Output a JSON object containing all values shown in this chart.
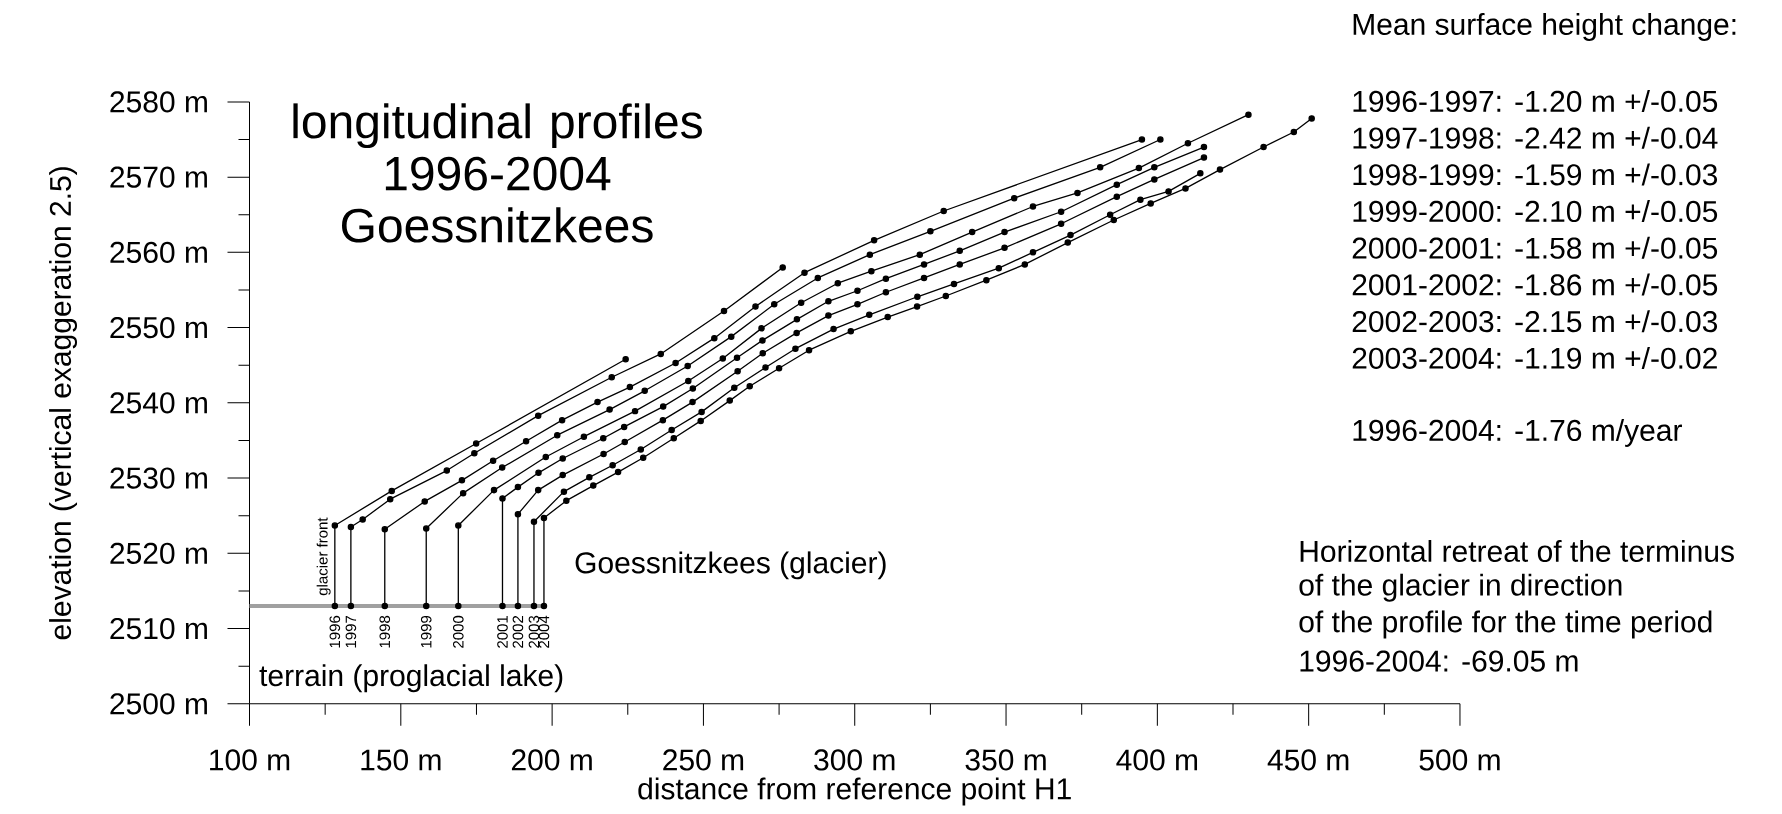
{
  "chart_data": {
    "type": "line",
    "title": "longitudinal profiles 1996-2004 Goessnitzkees",
    "xlabel": "distance from reference point H1",
    "ylabel": "elevation (vertical exaggeration 2.5)",
    "xlim": [
      100,
      500
    ],
    "ylim": [
      2500,
      2580
    ],
    "marker": "circle",
    "xticks": [
      {
        "value": 100,
        "label": "100 m"
      },
      {
        "value": 125,
        "label": null
      },
      {
        "value": 150,
        "label": "150 m"
      },
      {
        "value": 175,
        "label": null
      },
      {
        "value": 200,
        "label": "200 m"
      },
      {
        "value": 225,
        "label": null
      },
      {
        "value": 250,
        "label": "250 m"
      },
      {
        "value": 275,
        "label": null
      },
      {
        "value": 300,
        "label": "300 m"
      },
      {
        "value": 325,
        "label": null
      },
      {
        "value": 350,
        "label": "350 m"
      },
      {
        "value": 375,
        "label": null
      },
      {
        "value": 400,
        "label": "400 m"
      },
      {
        "value": 425,
        "label": null
      },
      {
        "value": 450,
        "label": "450 m"
      },
      {
        "value": 475,
        "label": null
      },
      {
        "value": 500,
        "label": "500 m"
      }
    ],
    "yticks": [
      {
        "value": 2500,
        "label": "2500 m"
      },
      {
        "value": 2505,
        "label": null
      },
      {
        "value": 2510,
        "label": "2510 m"
      },
      {
        "value": 2515,
        "label": null
      },
      {
        "value": 2520,
        "label": "2520 m"
      },
      {
        "value": 2525,
        "label": null
      },
      {
        "value": 2530,
        "label": "2530 m"
      },
      {
        "value": 2535,
        "label": null
      },
      {
        "value": 2540,
        "label": "2540 m"
      },
      {
        "value": 2545,
        "label": null
      },
      {
        "value": 2550,
        "label": "2550 m"
      },
      {
        "value": 2555,
        "label": null
      },
      {
        "value": 2560,
        "label": "2560 m"
      },
      {
        "value": 2565,
        "label": null
      },
      {
        "value": 2570,
        "label": "2570 m"
      },
      {
        "value": 2575,
        "label": null
      },
      {
        "value": 2580,
        "label": "2580 m"
      }
    ],
    "series": [
      {
        "color": "#a0a0a0",
        "marker": "none",
        "x": [
          100,
          197.3
        ],
        "values": [
          2513,
          2513
        ]
      },
      {
        "name": "1996",
        "color": "#000000",
        "x": [
          128.2,
          128.2,
          147.0,
          174.9,
          224.3
        ],
        "values": [
          2513,
          2523.7,
          2528.3,
          2534.6,
          2545.8
        ]
      },
      {
        "name": "1997",
        "color": "#000000",
        "x": [
          133.5,
          133.5,
          137.4,
          146.5,
          165.2,
          174.3,
          195.4,
          219.7,
          235.9,
          256.8,
          276.2
        ],
        "values": [
          2513,
          2523.5,
          2524.5,
          2527.2,
          2531.0,
          2533.3,
          2538.3,
          2543.4,
          2546.5,
          2552.2,
          2558.0
        ]
      },
      {
        "name": "1998",
        "color": "#000000",
        "x": [
          144.7,
          144.7,
          157.9,
          170.2,
          180.5,
          191.4,
          203.3,
          215.0,
          225.7,
          240.8,
          253.6,
          267.2,
          283.4,
          306.4,
          329.4,
          394.9
        ],
        "values": [
          2513,
          2523.2,
          2526.9,
          2529.7,
          2532.3,
          2534.9,
          2537.7,
          2540.1,
          2542.1,
          2545.3,
          2548.6,
          2552.8,
          2557.3,
          2561.6,
          2565.5,
          2575.0
        ]
      },
      {
        "name": "1999",
        "color": "#000000",
        "x": [
          158.4,
          158.4,
          170.6,
          183.5,
          201.7,
          219.0,
          230.6,
          244.8,
          259.2,
          273.4,
          287.8,
          305.0,
          325.0,
          352.7,
          381.1,
          401.0
        ],
        "values": [
          2513,
          2523.3,
          2528.0,
          2531.4,
          2535.7,
          2539.1,
          2541.6,
          2544.9,
          2548.8,
          2553.1,
          2556.6,
          2559.7,
          2562.8,
          2567.2,
          2571.3,
          2575.0
        ]
      },
      {
        "name": "2000",
        "color": "#000000",
        "x": [
          169.0,
          169.0,
          180.8,
          197.9,
          210.5,
          227.4,
          245.0,
          256.4,
          269.2,
          282.3,
          294.4,
          305.5,
          321.5,
          338.8,
          358.9,
          373.6,
          393.9,
          410.1,
          430.1
        ],
        "values": [
          2513,
          2523.7,
          2528.4,
          2532.8,
          2535.5,
          2538.9,
          2542.9,
          2545.9,
          2549.9,
          2553.3,
          2555.9,
          2557.5,
          2559.7,
          2562.7,
          2566.1,
          2567.9,
          2571.2,
          2574.5,
          2578.3
        ]
      },
      {
        "name": "2001",
        "color": "#000000",
        "x": [
          183.6,
          183.6,
          188.7,
          195.5,
          203.5,
          216.9,
          223.8,
          236.7,
          246.5,
          261.1,
          269.5,
          280.9,
          291.3,
          300.9,
          310.3,
          322.9,
          334.7,
          349.5,
          368.2,
          386.6,
          399.0,
          415.4
        ],
        "values": [
          2513,
          2527.3,
          2528.8,
          2530.7,
          2532.6,
          2535.3,
          2536.8,
          2539.5,
          2541.9,
          2546.0,
          2548.3,
          2551.1,
          2553.5,
          2554.9,
          2556.5,
          2558.4,
          2560.2,
          2562.7,
          2565.4,
          2569.0,
          2571.3,
          2574.0
        ]
      },
      {
        "name": "2002",
        "color": "#000000",
        "x": [
          188.7,
          188.7,
          195.4,
          203.5,
          217.0,
          224.0,
          236.6,
          246.4,
          261.3,
          269.6,
          280.8,
          291.3,
          300.9,
          310.3,
          322.9,
          334.7,
          349.5,
          368.2,
          386.6,
          399.0,
          415.4
        ],
        "values": [
          2513,
          2525.2,
          2528.4,
          2530.4,
          2533.2,
          2534.8,
          2537.7,
          2540.1,
          2544.2,
          2546.6,
          2549.3,
          2551.6,
          2553.1,
          2554.7,
          2556.6,
          2558.4,
          2560.6,
          2563.8,
          2567.4,
          2569.7,
          2572.6
        ]
      },
      {
        "name": "2003",
        "color": "#000000",
        "x": [
          194.0,
          194.0,
          203.9,
          212.3,
          220.0,
          229.3,
          239.5,
          249.4,
          260.2,
          270.5,
          280.4,
          293.0,
          304.8,
          320.7,
          332.8,
          347.6,
          358.9,
          371.3,
          384.4,
          394.4,
          403.7,
          414.2
        ],
        "values": [
          2513,
          2524.2,
          2528.2,
          2530.1,
          2531.7,
          2533.8,
          2536.4,
          2538.8,
          2542.0,
          2544.7,
          2547.2,
          2549.8,
          2551.7,
          2554.1,
          2555.8,
          2557.9,
          2560.0,
          2562.3,
          2565.0,
          2567.0,
          2568.1,
          2570.5
        ]
      },
      {
        "name": "2004",
        "color": "#000000",
        "x": [
          197.3,
          197.3,
          204.7,
          213.6,
          221.8,
          230.1,
          240.2,
          249.1,
          258.7,
          265.3,
          275.0,
          284.9,
          298.7,
          310.9,
          320.6,
          330.1,
          343.5,
          356.2,
          370.4,
          385.6,
          397.8,
          409.3,
          420.7,
          435.1,
          445.1,
          451.0
        ],
        "values": [
          2513,
          2524.7,
          2527.0,
          2529.0,
          2530.8,
          2532.7,
          2535.3,
          2537.6,
          2540.3,
          2542.2,
          2544.6,
          2547.0,
          2549.5,
          2551.4,
          2552.8,
          2554.2,
          2556.3,
          2558.4,
          2561.3,
          2564.3,
          2566.5,
          2568.5,
          2571.0,
          2574.0,
          2576.0,
          2577.8
        ]
      }
    ],
    "annotations": [
      {
        "text": "glacier front",
        "x": 128.2,
        "y": 2513
      },
      "Goessnitzkees (glacier)",
      "terrain (proglacial lake)",
      "Mean surface height change:",
      "1996-1997: -1.20 m +/-0.05",
      "1997-1998: -2.42 m +/-0.04",
      "1998-1999: -1.59 m +/-0.03",
      "1999-2000: -2.10 m +/-0.05",
      "2000-2001: -1.58 m +/-0.05",
      "2001-2002: -1.86 m +/-0.05",
      "2002-2003: -2.15 m +/-0.03",
      "2003-2004: -1.19 m +/-0.02",
      "1996-2004: -1.76 m/year",
      "Horizontal retreat of the terminus",
      "of the glacier in direction",
      "of the profile for the time period",
      "1996-2004: -69.05 m"
    ]
  }
}
